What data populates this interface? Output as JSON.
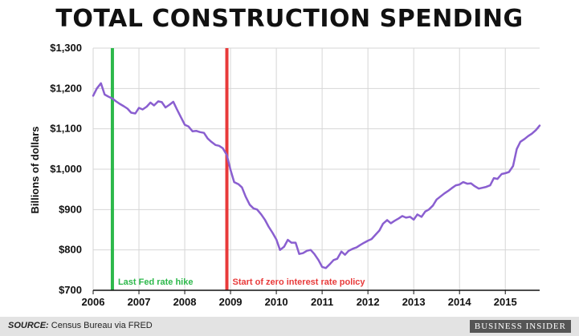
{
  "title": "TOTAL CONSTRUCTION SPENDING",
  "source_label": "SOURCE:",
  "source_text": "Census Bureau via FRED",
  "brand": "BUSINESS INSIDER",
  "chart_data": {
    "type": "line",
    "title": "TOTAL CONSTRUCTION SPENDING",
    "xlabel": "",
    "ylabel": "Billions of dollars",
    "xlim": [
      2006,
      2015.75
    ],
    "ylim": [
      700,
      1300
    ],
    "yticks": [
      700,
      800,
      900,
      1000,
      1100,
      1200,
      1300
    ],
    "ytick_labels": [
      "$700",
      "$800",
      "$900",
      "$1,000",
      "$1,100",
      "$1,200",
      "$1,300"
    ],
    "xticks": [
      2006,
      2007,
      2008,
      2009,
      2010,
      2011,
      2012,
      2013,
      2014,
      2015
    ],
    "xtick_labels": [
      "2006",
      "2007",
      "2008",
      "2009",
      "2010",
      "2011",
      "2012",
      "2013",
      "2014",
      "2015"
    ],
    "grid": true,
    "line_color": "#8a5fd0",
    "series": [
      {
        "x": [
          2006.0,
          2006.08,
          2006.17,
          2006.25,
          2006.33,
          2006.42,
          2006.5,
          2006.58,
          2006.67,
          2006.75,
          2006.83,
          2006.92,
          2007.0,
          2007.08,
          2007.17,
          2007.25,
          2007.33,
          2007.42,
          2007.5,
          2007.58,
          2007.67,
          2007.75,
          2007.83,
          2007.92,
          2008.0,
          2008.08,
          2008.17,
          2008.25,
          2008.33,
          2008.42,
          2008.5,
          2008.58,
          2008.67,
          2008.75,
          2008.83,
          2008.92,
          2009.0,
          2009.08,
          2009.17,
          2009.25,
          2009.33,
          2009.42,
          2009.5,
          2009.58,
          2009.67,
          2009.75,
          2009.83,
          2009.92,
          2010.0,
          2010.08,
          2010.17,
          2010.25,
          2010.33,
          2010.42,
          2010.5,
          2010.58,
          2010.67,
          2010.75,
          2010.83,
          2010.92,
          2011.0,
          2011.08,
          2011.17,
          2011.25,
          2011.33,
          2011.42,
          2011.5,
          2011.58,
          2011.67,
          2011.75,
          2011.83,
          2011.92,
          2012.0,
          2012.08,
          2012.17,
          2012.25,
          2012.33,
          2012.42,
          2012.5,
          2012.58,
          2012.67,
          2012.75,
          2012.83,
          2012.92,
          2013.0,
          2013.08,
          2013.17,
          2013.25,
          2013.33,
          2013.42,
          2013.5,
          2013.58,
          2013.67,
          2013.75,
          2013.83,
          2013.92,
          2014.0,
          2014.08,
          2014.17,
          2014.25,
          2014.33,
          2014.42,
          2014.5,
          2014.58,
          2014.67,
          2014.75,
          2014.83,
          2014.92,
          2015.0,
          2015.08,
          2015.17,
          2015.25,
          2015.33,
          2015.42,
          2015.5,
          2015.58,
          2015.67,
          2015.75
        ],
        "values": [
          1182,
          1200,
          1213,
          1185,
          1180,
          1175,
          1168,
          1162,
          1156,
          1150,
          1140,
          1138,
          1152,
          1148,
          1155,
          1165,
          1158,
          1168,
          1166,
          1153,
          1160,
          1167,
          1148,
          1128,
          1110,
          1106,
          1094,
          1095,
          1092,
          1090,
          1076,
          1068,
          1060,
          1058,
          1052,
          1035,
          998,
          968,
          963,
          955,
          932,
          912,
          903,
          900,
          888,
          875,
          858,
          842,
          826,
          800,
          808,
          825,
          818,
          818,
          790,
          792,
          798,
          800,
          790,
          775,
          758,
          755,
          765,
          775,
          778,
          796,
          788,
          798,
          803,
          806,
          812,
          818,
          823,
          827,
          838,
          848,
          865,
          874,
          866,
          872,
          878,
          884,
          880,
          882,
          875,
          888,
          882,
          895,
          900,
          910,
          925,
          932,
          940,
          946,
          953,
          960,
          962,
          968,
          964,
          965,
          958,
          952,
          954,
          956,
          960,
          978,
          976,
          988,
          990,
          993,
          1008,
          1050,
          1068,
          1075,
          1082,
          1088,
          1097,
          1108
        ]
      }
    ],
    "annotations": [
      {
        "x": 2006.42,
        "label": "Last Fed rate hike",
        "color": "#2db84b"
      },
      {
        "x": 2008.92,
        "label": "Start of zero interest rate policy",
        "color": "#e83a3a"
      }
    ]
  }
}
